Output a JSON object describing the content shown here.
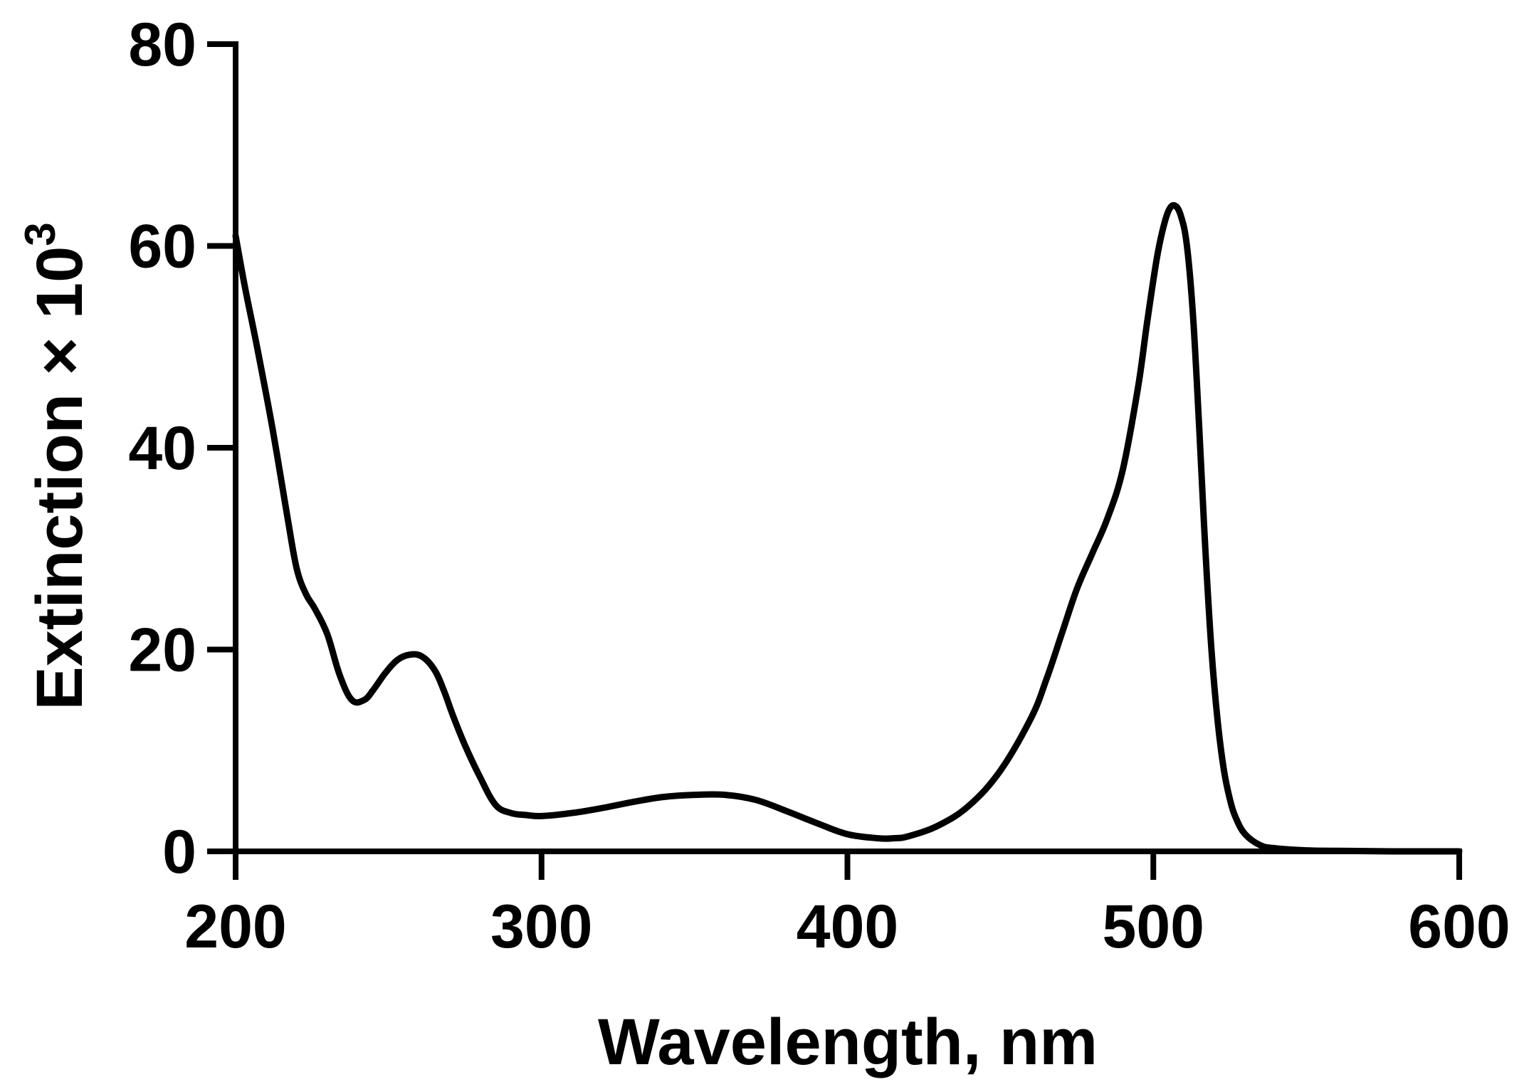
{
  "chart_data": {
    "type": "line",
    "title": "",
    "xlabel": "Wavelength, nm",
    "ylabel": "Extinction × 10",
    "ylabel_superscript": "3",
    "xlim": [
      200,
      600
    ],
    "ylim": [
      0,
      80
    ],
    "xticks": [
      "200",
      "300",
      "400",
      "500",
      "600"
    ],
    "yticks": [
      "0",
      "20",
      "40",
      "60",
      "80"
    ],
    "grid": false,
    "legend": "none",
    "series": [
      {
        "color": "#000000",
        "x": [
          200,
          203,
          207,
          212,
          217,
          220,
          223,
          226,
          230,
          234,
          238,
          242,
          245,
          249,
          253,
          257,
          261,
          265,
          268,
          271,
          275,
          280,
          285,
          290,
          295,
          300,
          310,
          320,
          330,
          340,
          350,
          360,
          370,
          380,
          390,
          400,
          410,
          415,
          420,
          430,
          440,
          450,
          460,
          465,
          470,
          475,
          480,
          485,
          490,
          495,
          498,
          501,
          503,
          505,
          507,
          509,
          511,
          513,
          515,
          517,
          519,
          521,
          523,
          525,
          527,
          530,
          535,
          540,
          550,
          560,
          580,
          600
        ],
        "y": [
          61,
          56,
          50,
          42,
          33,
          28,
          25.5,
          24,
          21.5,
          17.5,
          15,
          15,
          16,
          17.7,
          19,
          19.5,
          19.3,
          18,
          16,
          13.5,
          10.5,
          7.3,
          4.6,
          3.8,
          3.6,
          3.5,
          3.8,
          4.3,
          4.9,
          5.4,
          5.6,
          5.6,
          5.1,
          4,
          2.8,
          1.7,
          1.3,
          1.3,
          1.5,
          2.6,
          4.6,
          8,
          13.2,
          17,
          21.5,
          26,
          29.5,
          33,
          37.8,
          46,
          52.5,
          58.5,
          61.5,
          63.5,
          64,
          63,
          60,
          53,
          42,
          30,
          20,
          13,
          8.2,
          5.2,
          3.3,
          1.7,
          0.6,
          0.3,
          0.1,
          0.05,
          0,
          0
        ]
      }
    ]
  }
}
